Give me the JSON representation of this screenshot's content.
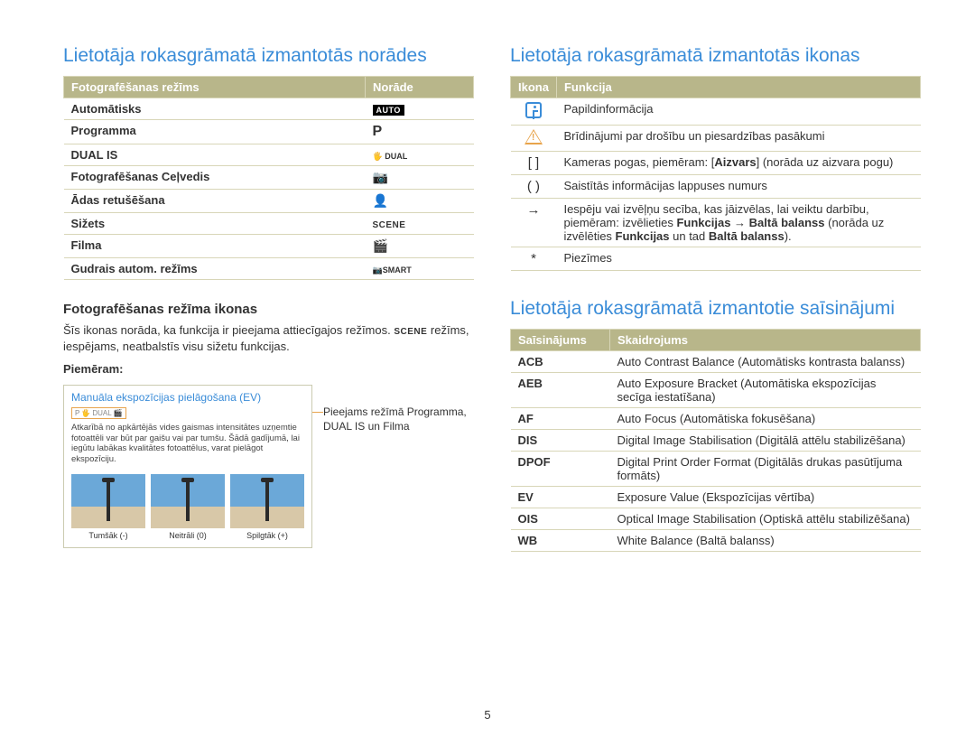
{
  "page_number": "5",
  "left": {
    "title": "Lietotāja rokasgrāmatā izmantotās norādes",
    "table": {
      "headers": [
        "Fotografēšanas režīms",
        "Norāde"
      ],
      "rows": [
        {
          "mode": "Automātisks",
          "icon_type": "auto",
          "icon_text": "AUTO"
        },
        {
          "mode": "Programma",
          "icon_type": "p",
          "icon_text": "P"
        },
        {
          "mode": "DUAL IS",
          "icon_type": "dual",
          "icon_text": "🖐 DUAL"
        },
        {
          "mode": "Fotografēšanas Ceļvedis",
          "icon_type": "glyph",
          "icon_text": "📷"
        },
        {
          "mode": "Ādas retušēšana",
          "icon_type": "glyph",
          "icon_text": "👤"
        },
        {
          "mode": "Sižets",
          "icon_type": "scene",
          "icon_text": "SCENE"
        },
        {
          "mode": "Filma",
          "icon_type": "glyph",
          "icon_text": "🎬"
        },
        {
          "mode": "Gudrais autom. režīms",
          "icon_type": "smart",
          "icon_text": "📷SMART"
        }
      ]
    },
    "sub_heading": "Fotografēšanas režīma ikonas",
    "sub_para_1": "Šīs ikonas norāda, ka funkcija ir pieejama attiecīgajos režīmos. ",
    "sub_para_scene": "SCENE",
    "sub_para_2": " režīms, iespējams, neatbalstīs visu sižetu funkcijas.",
    "example_label": "Piemēram:",
    "example_box": {
      "title": "Manuāla ekspozīcijas pielāgošana (EV)",
      "body": "Atkarībā no apkārtējās vides gaismas intensitātes uzņemtie fotoattēli var būt par gaišu vai par tumšu. Šādā gadījumā, lai iegūtu labākas kvalitātes fotoattēlus, varat pielāgot ekspozīciju.",
      "thumbs": [
        {
          "label": "Tumšāk (-)"
        },
        {
          "label": "Neitrāli (0)"
        },
        {
          "label": "Spilgtāk (+)"
        }
      ]
    },
    "example_caption": "Pieejams režīmā Programma, DUAL IS un Filma"
  },
  "right_top": {
    "title": "Lietotāja rokasgrāmatā izmantotās ikonas",
    "table_headers": [
      "Ikona",
      "Funkcija"
    ],
    "rows": [
      {
        "icon": "info",
        "text": "Papildinformācija"
      },
      {
        "icon": "warn",
        "text": "Brīdinājumi par drošību un piesardzības pasākumi"
      },
      {
        "icon": "brackets",
        "text_html": "Kameras pogas, piemēram: [<b>Aizvars</b>] (norāda uz aizvara pogu)"
      },
      {
        "icon": "parens",
        "text": "Saistītās informācijas lappuses numurs"
      },
      {
        "icon": "arrow",
        "text_html": "Iespēju vai izvēļņu secība, kas jāizvēlas, lai veiktu darbību, piemēram: izvēlieties <b>Funkcijas</b> → <b>Baltā balanss</b> (norāda uz izvēlēties <b>Funkcijas</b> un tad <b>Baltā balanss</b>)."
      },
      {
        "icon": "star",
        "text": "Piezīmes"
      }
    ]
  },
  "right_bottom": {
    "title": "Lietotāja rokasgrāmatā izmantotie saīsinājumi",
    "table_headers": [
      "Saīsinājums",
      "Skaidrojums"
    ],
    "rows": [
      {
        "abbr": "ACB",
        "desc": "Auto Contrast Balance (Automātisks kontrasta balanss)"
      },
      {
        "abbr": "AEB",
        "desc": "Auto Exposure Bracket (Automātiska ekspozīcijas secīga iestatīšana)"
      },
      {
        "abbr": "AF",
        "desc": "Auto Focus (Automātiska fokusēšana)"
      },
      {
        "abbr": "DIS",
        "desc": "Digital Image Stabilisation (Digitālā attēlu stabilizēšana)"
      },
      {
        "abbr": "DPOF",
        "desc": "Digital Print Order Format (Digitālās drukas pasūtījuma formāts)"
      },
      {
        "abbr": "EV",
        "desc": "Exposure Value (Ekspozīcijas vērtība)"
      },
      {
        "abbr": "OIS",
        "desc": "Optical Image Stabilisation (Optiskā attēlu stabilizēšana)"
      },
      {
        "abbr": "WB",
        "desc": "White Balance (Baltā balanss)"
      }
    ]
  }
}
